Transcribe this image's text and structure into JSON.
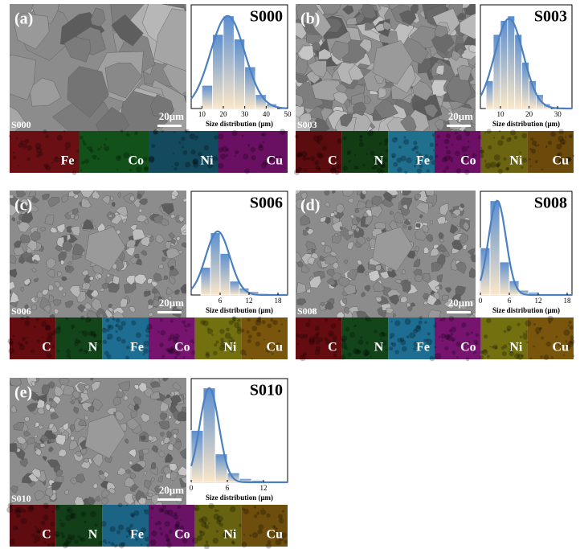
{
  "panels": [
    {
      "label": "(a)",
      "sample": "S000",
      "scale_bar": "20μm",
      "elements": [
        {
          "name": "Fe",
          "color": "#6a1014"
        },
        {
          "name": "Co",
          "color": "#12521a"
        },
        {
          "name": "Ni",
          "color": "#134a5e"
        },
        {
          "name": "Cu",
          "color": "#6a1062"
        }
      ]
    },
    {
      "label": "(b)",
      "sample": "S003",
      "scale_bar": "20μm",
      "elements": [
        {
          "name": "C",
          "color": "#5a0c0e"
        },
        {
          "name": "N",
          "color": "#123d14"
        },
        {
          "name": "Fe",
          "color": "#1f6f8f"
        },
        {
          "name": "Co",
          "color": "#6e0f66"
        },
        {
          "name": "Ni",
          "color": "#6b6410"
        },
        {
          "name": "Cu",
          "color": "#6b4a0c"
        }
      ]
    },
    {
      "label": "(c)",
      "sample": "S006",
      "scale_bar": "20μm",
      "elements": [
        {
          "name": "C",
          "color": "#640c10"
        },
        {
          "name": "N",
          "color": "#12461a"
        },
        {
          "name": "Fe",
          "color": "#1d6e92"
        },
        {
          "name": "Co",
          "color": "#761470"
        },
        {
          "name": "Ni",
          "color": "#73700f"
        },
        {
          "name": "Cu",
          "color": "#7a560c"
        }
      ]
    },
    {
      "label": "(d)",
      "sample": "S008",
      "scale_bar": "20μm",
      "elements": [
        {
          "name": "C",
          "color": "#640c10"
        },
        {
          "name": "N",
          "color": "#12461a"
        },
        {
          "name": "Fe",
          "color": "#1d6e92"
        },
        {
          "name": "Co",
          "color": "#761470"
        },
        {
          "name": "Ni",
          "color": "#73700f"
        },
        {
          "name": "Cu",
          "color": "#7a560c"
        }
      ]
    },
    {
      "label": "(e)",
      "sample": "S010",
      "scale_bar": "20μm",
      "elements": [
        {
          "name": "C",
          "color": "#5e0c10"
        },
        {
          "name": "N",
          "color": "#123f18"
        },
        {
          "name": "Fe",
          "color": "#1b6486"
        },
        {
          "name": "Co",
          "color": "#6a1266"
        },
        {
          "name": "Ni",
          "color": "#66620f"
        },
        {
          "name": "Cu",
          "color": "#6e4e0c"
        }
      ]
    }
  ],
  "chart_data": [
    {
      "type": "histogram",
      "title": "S000",
      "xlabel": "Size distribution (μm)",
      "bins": [
        10,
        15,
        20,
        25,
        30,
        35,
        40,
        45
      ],
      "values": [
        0.25,
        0.8,
        1.0,
        0.75,
        0.45,
        0.15,
        0.05
      ],
      "xlim": [
        5,
        50
      ],
      "xticks": [
        10,
        20,
        30,
        40,
        50
      ],
      "ylim": [
        0,
        1.12
      ],
      "fit": {
        "mean": 22,
        "sd": 8,
        "peak": 1.0
      },
      "color": "#4a7fc0"
    },
    {
      "type": "histogram",
      "title": "S003",
      "xlabel": "Size distribution (μm)",
      "bins": [
        5,
        7.5,
        10,
        12.5,
        15,
        17.5,
        20,
        22.5,
        25,
        27.5
      ],
      "values": [
        0.3,
        0.8,
        0.95,
        1.0,
        0.8,
        0.5,
        0.3,
        0.15,
        0.05
      ],
      "xlim": [
        3,
        35
      ],
      "xticks": [
        10,
        20,
        30
      ],
      "ylim": [
        0,
        1.12
      ],
      "fit": {
        "mean": 13,
        "sd": 5,
        "peak": 0.97
      },
      "color": "#4a7fc0"
    },
    {
      "type": "histogram",
      "title": "S006",
      "xlabel": "Size distribution (μm)",
      "bins": [
        2,
        4,
        6,
        8,
        10,
        12,
        14,
        16
      ],
      "values": [
        0.4,
        0.9,
        0.6,
        0.2,
        0.1,
        0.05,
        0.02
      ],
      "xlim": [
        0,
        20
      ],
      "xticks": [
        6,
        12,
        18
      ],
      "ylim": [
        0,
        1.5
      ],
      "fit": {
        "mean": 5.5,
        "sd": 2.5,
        "peak": 0.92
      },
      "color": "#4a7fc0"
    },
    {
      "type": "histogram",
      "title": "S008",
      "xlabel": "Size distribution (μm)",
      "bins": [
        0,
        2,
        4,
        6,
        8,
        10,
        12
      ],
      "values": [
        0.5,
        1.0,
        0.35,
        0.15,
        0.05,
        0.03
      ],
      "xlim": [
        0,
        19
      ],
      "xticks": [
        0,
        6,
        12,
        18
      ],
      "ylim": [
        0,
        1.1
      ],
      "fit": {
        "mean": 3.5,
        "sd": 1.8,
        "peak": 1.0
      },
      "color": "#4a7fc0"
    },
    {
      "type": "histogram",
      "title": "S010",
      "xlabel": "Size distribution (μm)",
      "bins": [
        0,
        2,
        4,
        6,
        8,
        10,
        12
      ],
      "values": [
        0.55,
        1.0,
        0.3,
        0.1,
        0.04,
        0.02
      ],
      "xlim": [
        0,
        16
      ],
      "xticks": [
        0,
        6,
        12
      ],
      "ylim": [
        0,
        1.1
      ],
      "fit": {
        "mean": 3,
        "sd": 1.6,
        "peak": 1.0
      },
      "color": "#4a7fc0"
    }
  ]
}
